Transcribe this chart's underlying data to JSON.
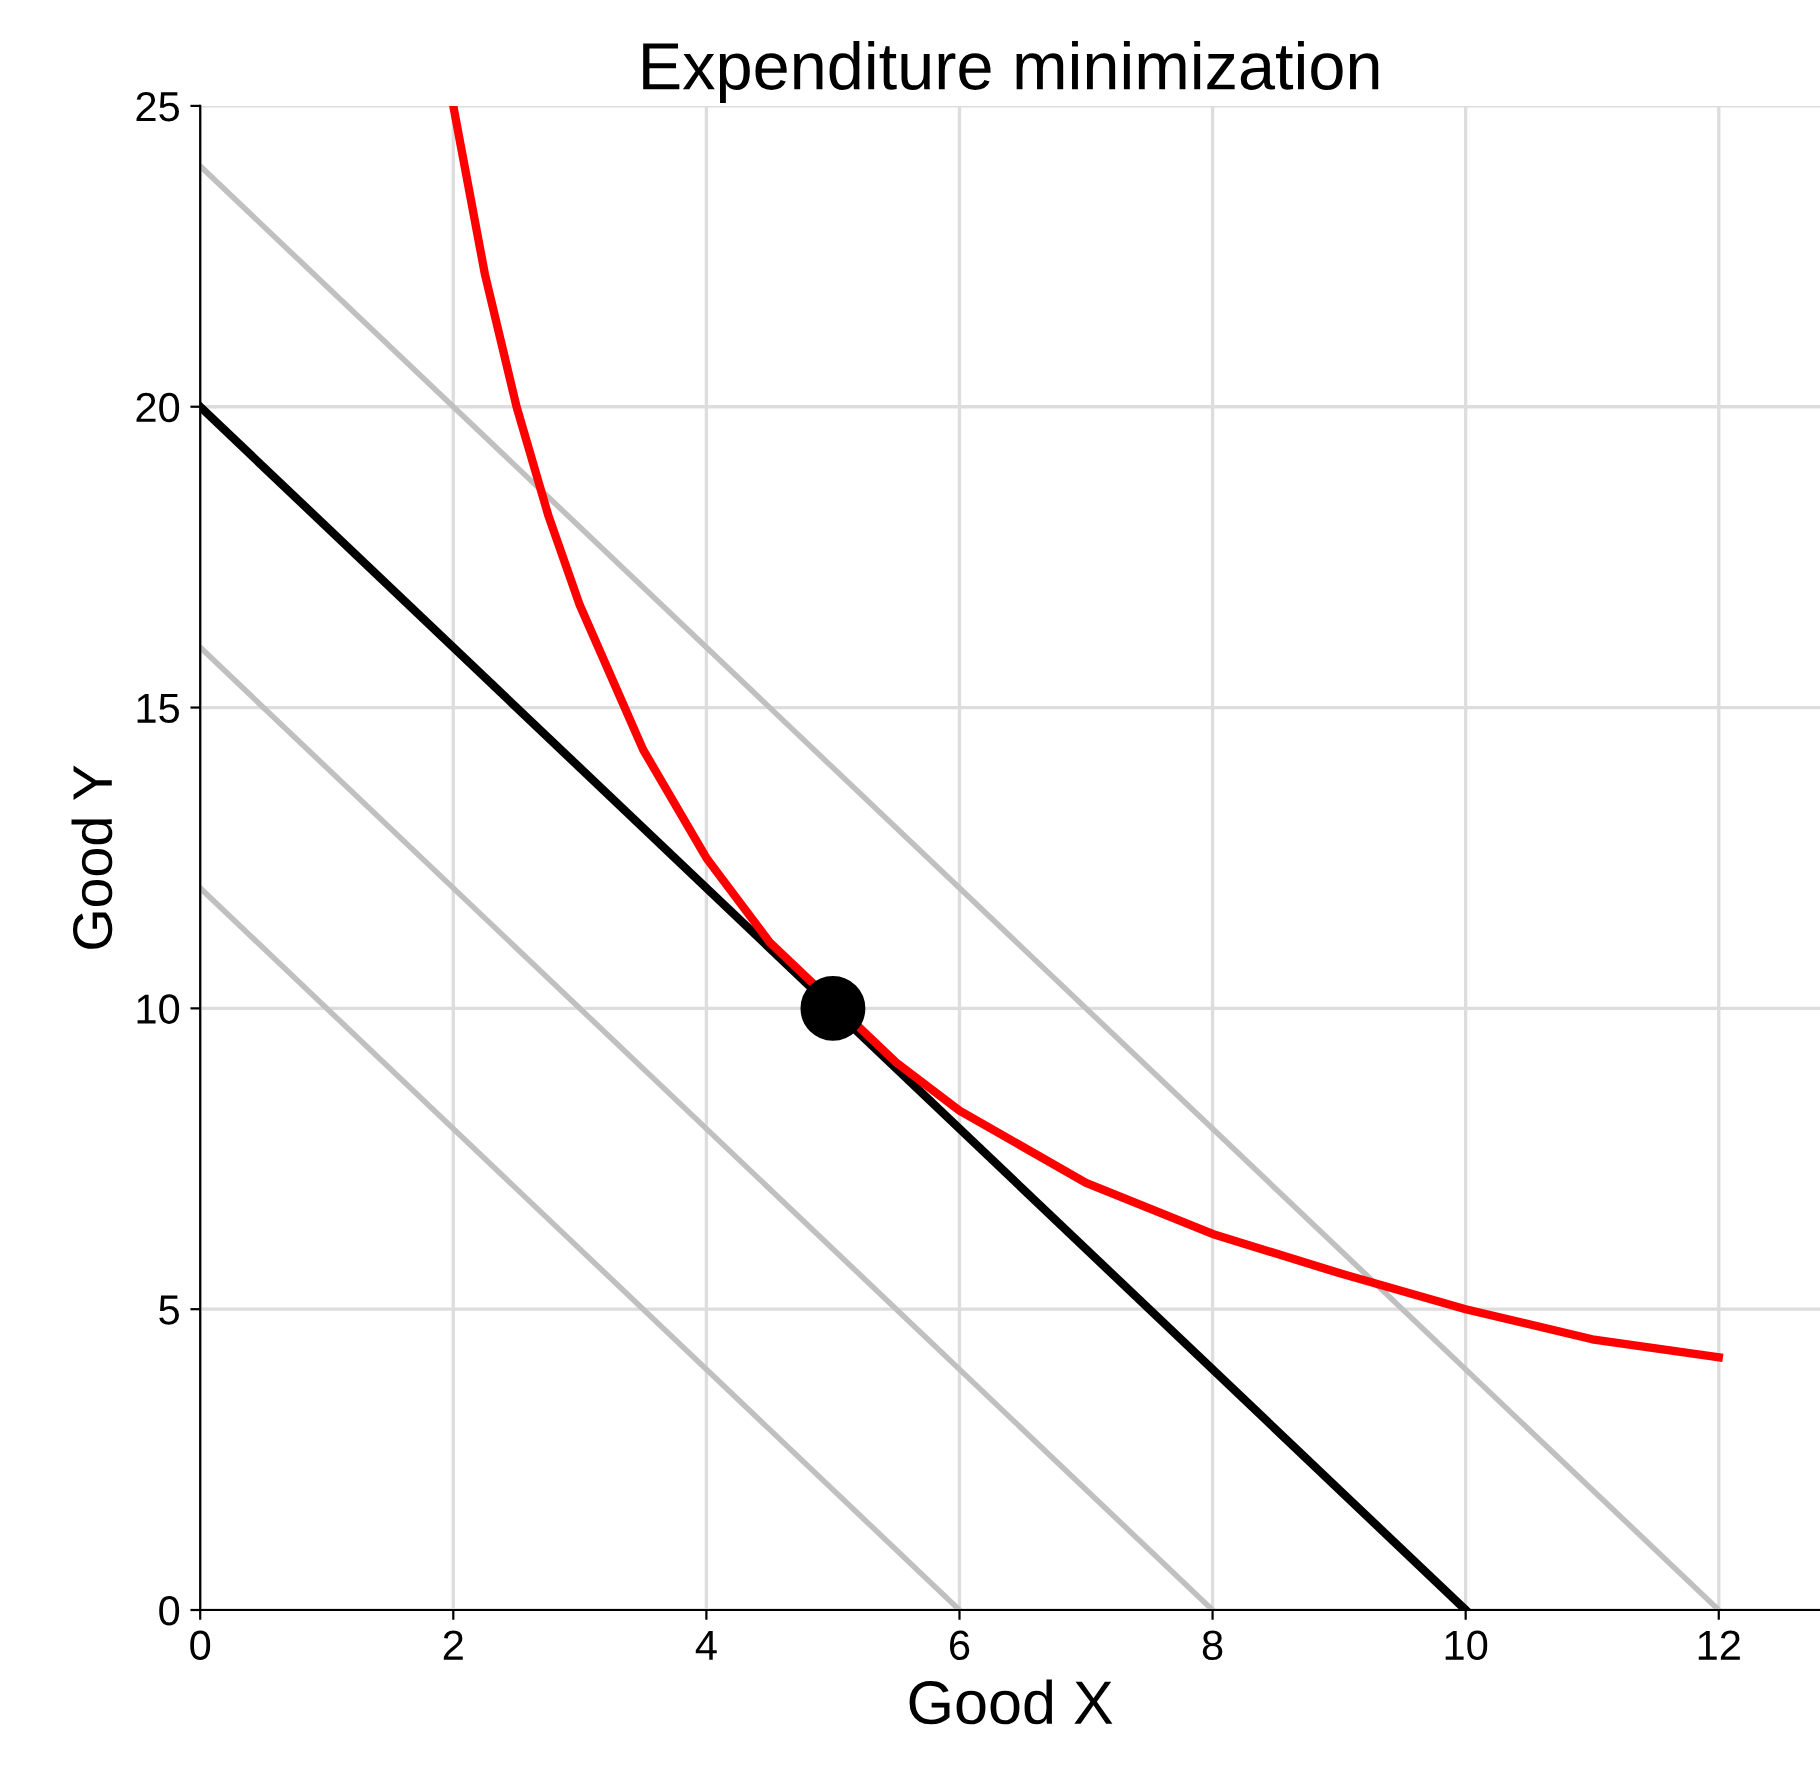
{
  "chart_data": {
    "type": "line",
    "title": "Expenditure minimization",
    "xlabel": "Good X",
    "ylabel": "Good Y",
    "xlim": [
      0,
      12.8
    ],
    "ylim": [
      0,
      25
    ],
    "xticks": [
      0,
      2,
      4,
      6,
      8,
      10,
      12
    ],
    "yticks": [
      0,
      5,
      10,
      15,
      20,
      25
    ],
    "grid": true,
    "legend": false,
    "marker": "none",
    "line_style": "solid",
    "series": [
      {
        "color": "#c0c0c0",
        "x": [
          0,
          12
        ],
        "values": [
          24,
          0
        ]
      },
      {
        "color": "#c0c0c0",
        "x": [
          0,
          8
        ],
        "values": [
          16,
          0
        ]
      },
      {
        "color": "#c0c0c0",
        "x": [
          0,
          6
        ],
        "values": [
          12,
          0
        ]
      },
      {
        "color": "#000000",
        "x": [
          0,
          10
        ],
        "values": [
          20,
          0
        ]
      },
      {
        "color": "#ff0000",
        "x": [
          2,
          2.25,
          2.5,
          2.75,
          3,
          3.5,
          4,
          4.5,
          5.5,
          6,
          7,
          8,
          9,
          10,
          11,
          12
        ],
        "values": [
          25,
          22.2,
          20,
          18.2,
          16.7,
          14.3,
          12.5,
          11.1,
          9.1,
          8.3,
          7.1,
          6.25,
          5.6,
          5,
          4.5,
          4.2
        ]
      },
      {
        "type": "scatter",
        "marker": "circle",
        "color": "#000000",
        "x": [
          5
        ],
        "values": [
          10
        ]
      }
    ]
  }
}
